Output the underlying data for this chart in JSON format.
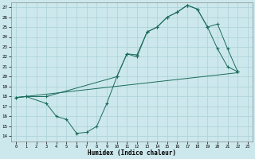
{
  "xlabel": "Humidex (Indice chaleur)",
  "bg_color": "#cce8ec",
  "line_color": "#1a6b5a",
  "grid_color": "#aad0d8",
  "ylim": [
    13.5,
    27.5
  ],
  "xlim": [
    -0.5,
    23.5
  ],
  "yticks": [
    14,
    15,
    16,
    17,
    18,
    19,
    20,
    21,
    22,
    23,
    24,
    25,
    26,
    27
  ],
  "xticks": [
    0,
    1,
    2,
    3,
    4,
    5,
    6,
    7,
    8,
    9,
    10,
    11,
    12,
    13,
    14,
    15,
    16,
    17,
    18,
    19,
    20,
    21,
    22,
    23
  ],
  "curve1_x": [
    0,
    1,
    3,
    4,
    5,
    6,
    7,
    8,
    9,
    10,
    11,
    12,
    13,
    14,
    15,
    16,
    17,
    18,
    19,
    20,
    21,
    22
  ],
  "curve1_y": [
    17.9,
    18.0,
    17.3,
    16.0,
    15.7,
    14.3,
    14.4,
    15.0,
    17.3,
    20.0,
    22.3,
    22.0,
    24.5,
    25.0,
    26.0,
    26.5,
    27.2,
    26.8,
    25.0,
    22.8,
    21.0,
    20.5
  ],
  "curve2_x": [
    0,
    22
  ],
  "curve2_y": [
    17.9,
    20.4
  ],
  "curve3_x": [
    0,
    1,
    3,
    10,
    11,
    12,
    13,
    14,
    15,
    16,
    17,
    18,
    19,
    20,
    21,
    22
  ],
  "curve3_y": [
    17.9,
    18.0,
    18.0,
    20.0,
    22.3,
    22.2,
    24.5,
    25.0,
    26.0,
    26.5,
    27.2,
    26.8,
    25.0,
    25.3,
    22.8,
    20.5
  ]
}
